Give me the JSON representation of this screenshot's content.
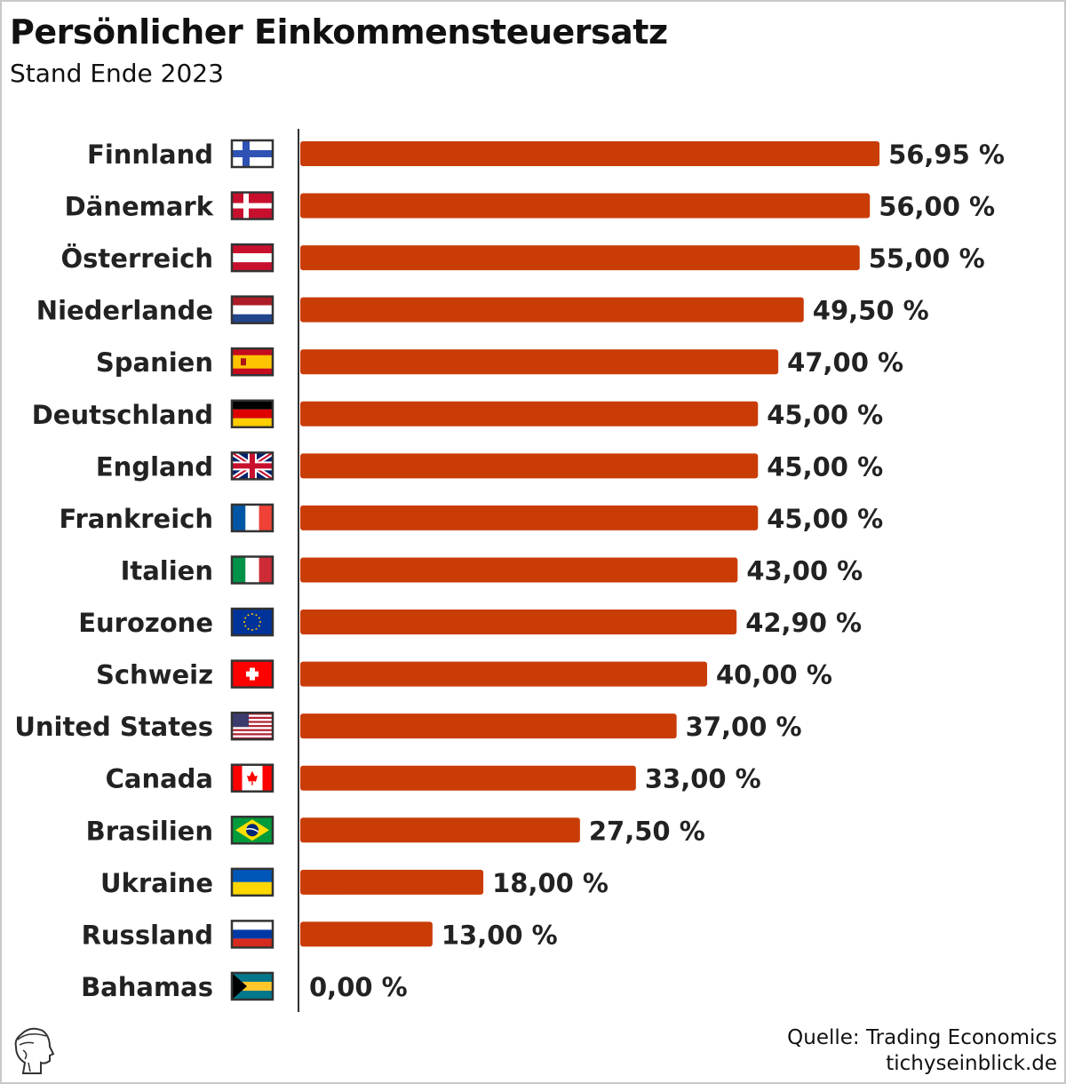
{
  "title": "Persönlicher Einkommensteuersatz",
  "subtitle": "Stand Ende 2023",
  "source": "Quelle: Trading Economics",
  "site": "tichyseinblick.de",
  "colors": {
    "bar": "#c93c06",
    "text": "#222222",
    "axis": "#333333"
  },
  "chart_data": {
    "type": "bar",
    "orientation": "horizontal",
    "title": "Persönlicher Einkommensteuersatz",
    "subtitle": "Stand Ende 2023",
    "xlabel": "",
    "ylabel": "",
    "xlim": [
      0,
      57
    ],
    "grid": false,
    "unit": "%",
    "categories": [
      "Finnland",
      "Dänemark",
      "Österreich",
      "Niederlande",
      "Spanien",
      "Deutschland",
      "England",
      "Frankreich",
      "Italien",
      "Eurozone",
      "Schweiz",
      "United States",
      "Canada",
      "Brasilien",
      "Ukraine",
      "Russland",
      "Bahamas"
    ],
    "flags": [
      "fi",
      "dk",
      "at",
      "nl",
      "es",
      "de",
      "gb",
      "fr",
      "it",
      "eu",
      "ch",
      "us",
      "ca",
      "br",
      "ua",
      "ru",
      "bs"
    ],
    "values": [
      56.95,
      56.0,
      55.0,
      49.5,
      47.0,
      45.0,
      45.0,
      45.0,
      43.0,
      42.9,
      40.0,
      37.0,
      33.0,
      27.5,
      18.0,
      13.0,
      0.0
    ],
    "value_labels": [
      "56,95 %",
      "56,00 %",
      "55,00 %",
      "49,50 %",
      "47,00 %",
      "45,00 %",
      "45,00 %",
      "45,00 %",
      "43,00 %",
      "42,90 %",
      "40,00 %",
      "37,00 %",
      "33,00 %",
      "27,50 %",
      "18,00 %",
      "13,00 %",
      "0,00 %"
    ]
  }
}
